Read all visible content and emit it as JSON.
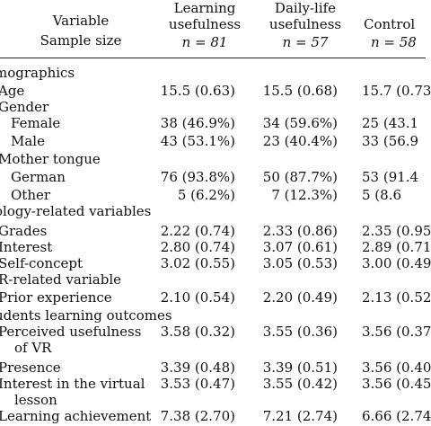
{
  "header": {
    "variable_line1": "Variable",
    "variable_line2": "Sample size",
    "col1_line1": "Learning",
    "col1_line2": "usefulness",
    "col1_n": "n = 81",
    "col2_line1": "Daily-life",
    "col2_line2": "usefulness",
    "col2_n": "n = 57",
    "col3_line1": "Control",
    "col3_n": "n = 58"
  },
  "rows": [
    {
      "label": "mographics",
      "c1": "",
      "c2": "",
      "c3": ""
    },
    {
      "label": "Age",
      "c1": "15.5 (0.63)",
      "c2": "15.5 (0.68)",
      "c3": "15.7 (0.73"
    },
    {
      "label": "Gender",
      "c1": "",
      "c2": "",
      "c3": ""
    },
    {
      "label": "Female",
      "c1": "38 (46.9%)",
      "c2": "34 (59.6%)",
      "c3": "25 (43.1"
    },
    {
      "label": "Male",
      "c1": "43 (53.1%)",
      "c2": "23 (40.4%)",
      "c3": "33 (56.9"
    },
    {
      "label": "Mother tongue",
      "c1": "",
      "c2": "",
      "c3": ""
    },
    {
      "label": "German",
      "c1": "76 (93.8%)",
      "c2": "50 (87.7%)",
      "c3": "53 (91.4"
    },
    {
      "label": "Other",
      "c1": "5 (6.2%)",
      "c2": "7 (12.3%)",
      "c3": "5 (8.6"
    },
    {
      "label": "ology-related variables",
      "c1": "",
      "c2": "",
      "c3": ""
    },
    {
      "label": "Grades",
      "c1": "2.22 (0.74)",
      "c2": "2.33 (0.86)",
      "c3": "2.35 (0.95"
    },
    {
      "label": "Interest",
      "c1": "2.80 (0.74)",
      "c2": "3.07 (0.61)",
      "c3": "2.89 (0.71"
    },
    {
      "label": "Self-concept",
      "c1": "3.02 (0.55)",
      "c2": "3.05 (0.53)",
      "c3": "3.00 (0.49"
    },
    {
      "label": "R-related variable",
      "c1": "",
      "c2": "",
      "c3": ""
    },
    {
      "label": "Prior experience",
      "c1": "2.10 (0.54)",
      "c2": "2.20 (0.49)",
      "c3": "2.13 (0.52"
    },
    {
      "label": "udents learning outcomes",
      "c1": "",
      "c2": "",
      "c3": ""
    },
    {
      "label": "Perceived usefulness",
      "label2": "of VR",
      "c1": "3.58 (0.32)",
      "c2": "3.55 (0.36)",
      "c3": "3.56 (0.37"
    },
    {
      "label": "Presence",
      "c1": "3.39 (0.48)",
      "c2": "3.39 (0.51)",
      "c3": "3.56 (0.40"
    },
    {
      "label": "Interest in the virtual",
      "label2": "lesson",
      "c1": "3.53 (0.47)",
      "c2": "3.55 (0.42)",
      "c3": "3.56 (0.45"
    },
    {
      "label": "Learning achievement",
      "c1": "7.38 (2.70)",
      "c2": "7.21 (2.74)",
      "c3": "6.66 (2.74"
    }
  ]
}
